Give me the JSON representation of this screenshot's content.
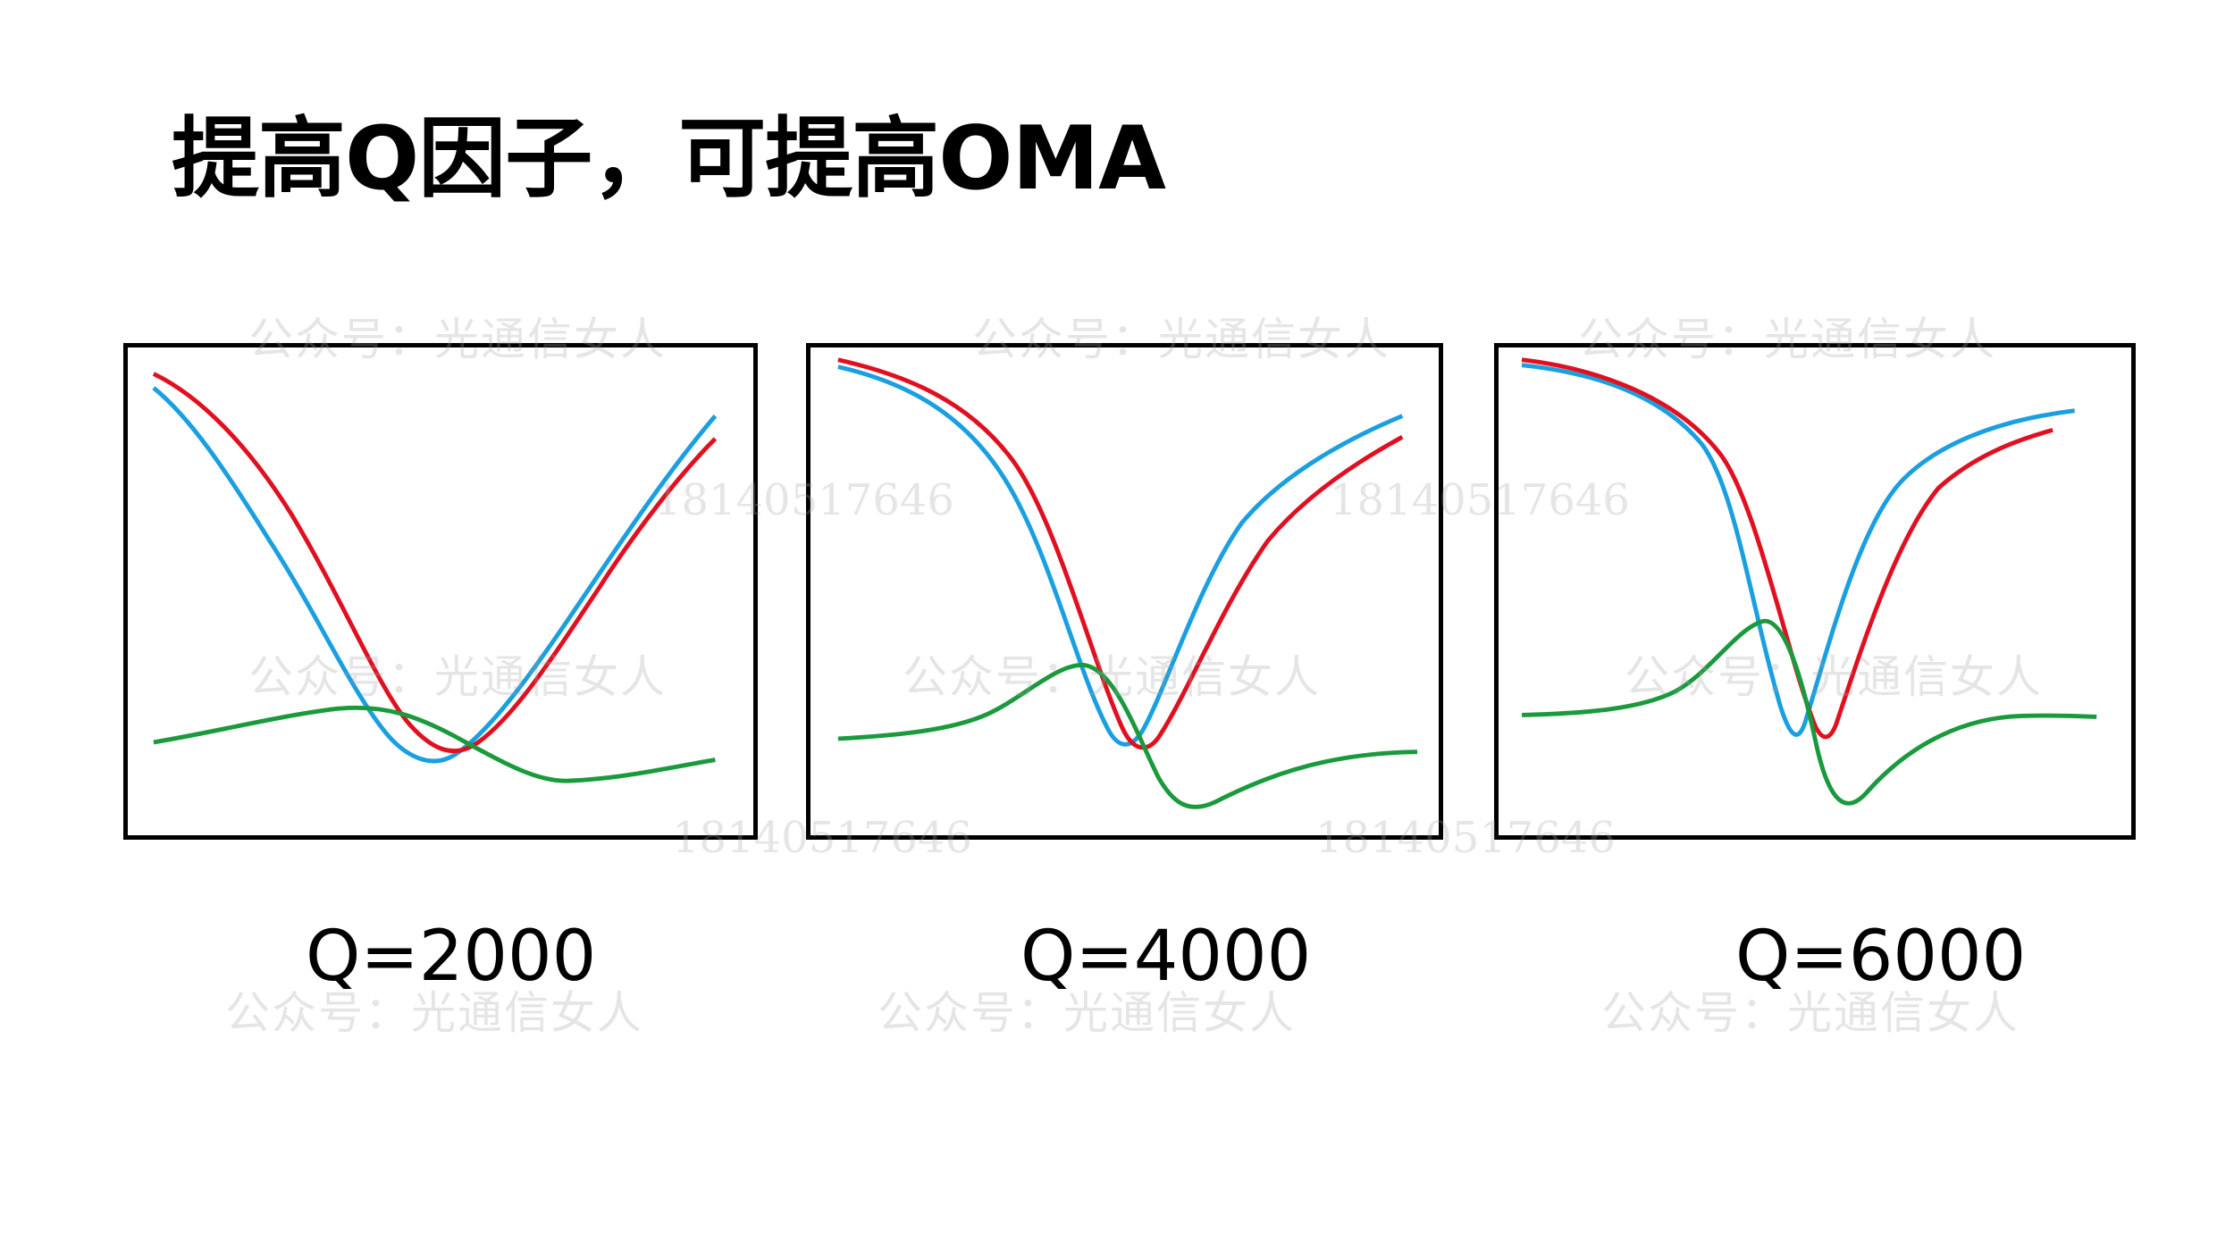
{
  "slide": {
    "title": "提高Q因子，可提高OMA",
    "watermark_text": "公众号：光通信女人",
    "watermark_number": "18140517646"
  },
  "colors": {
    "blue": "#1a9fe0",
    "red": "#e01020",
    "green": "#1a9a3c",
    "frame": "#000000"
  },
  "panels": [
    {
      "id": "q2000",
      "label": "Q=2000"
    },
    {
      "id": "q4000",
      "label": "Q=4000"
    },
    {
      "id": "q6000",
      "label": "Q=6000"
    }
  ]
}
